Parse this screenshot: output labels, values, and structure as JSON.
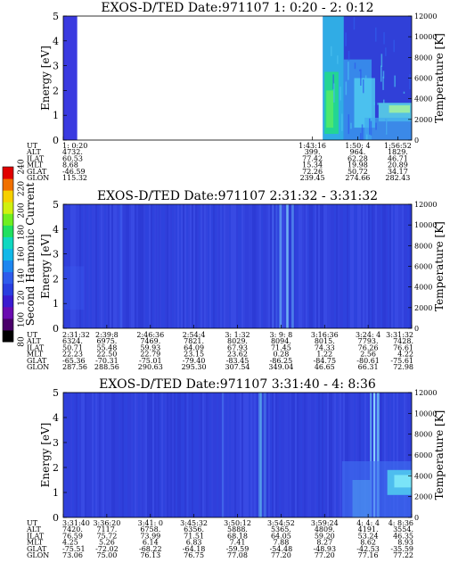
{
  "colorbar": {
    "label": "Second Harmonic Current",
    "ticks": [
      80,
      100,
      120,
      140,
      160,
      180,
      200,
      220,
      240
    ],
    "range": [
      80,
      240
    ],
    "colors": [
      "#000000",
      "#4a006a",
      "#6a0bb0",
      "#3a1bd0",
      "#2a3ee0",
      "#2f5bec",
      "#1d86f0",
      "#12b8e8",
      "#10d8c0",
      "#20e060",
      "#70ee20",
      "#d0f010",
      "#f5d000",
      "#f07000",
      "#e00000"
    ]
  },
  "chart_data": [
    {
      "type": "heatmap",
      "title": "EXOS-D/TED   Date:971107  1: 0:20 - 2: 0:12",
      "ylabel": "Energy [eV]",
      "ylabel_right": "Temperature [K]",
      "ylim": [
        0,
        5
      ],
      "yticks": [
        0,
        1,
        2,
        3,
        4,
        5
      ],
      "y2lim": [
        0,
        12000
      ],
      "y2ticks": [
        0,
        2000,
        4000,
        6000,
        8000,
        10000,
        12000
      ],
      "table_rows": [
        "UT",
        "ALT",
        "ILAT",
        "MLT",
        "GLAT",
        "GLON"
      ],
      "columns": [
        {
          "frac": 0.0,
          "values": [
            "1: 0:20",
            "4732.",
            "60.53",
            "8.68",
            "-46.59",
            "115.32"
          ]
        },
        {
          "frac": 0.715,
          "values": [
            "1:43:16",
            "399.",
            "77.42",
            "15.34",
            "72.26",
            "239.45"
          ]
        },
        {
          "frac": 0.845,
          "values": [
            "1:50: 4",
            "964.",
            "62.28",
            "19.98",
            "50.72",
            "274.66"
          ]
        },
        {
          "frac": 0.96,
          "values": [
            "1:56:52",
            "1829.",
            "46.71",
            "20.89",
            "34.17",
            "282.43"
          ]
        }
      ],
      "data_segments": [
        {
          "x_start": 0.0,
          "x_end": 0.04,
          "pattern": "uniform"
        },
        {
          "x_start": 0.745,
          "x_end": 1.0,
          "pattern": "active"
        }
      ]
    },
    {
      "type": "heatmap",
      "title": "EXOS-D/TED   Date:971107  2:31:32 - 3:31:32",
      "ylabel": "Energy [eV]",
      "ylabel_right": "Temperature [K]",
      "ylim": [
        0,
        5
      ],
      "yticks": [
        0,
        1,
        2,
        3,
        4,
        5
      ],
      "y2lim": [
        0,
        12000
      ],
      "y2ticks": [
        0,
        2000,
        4000,
        6000,
        8000,
        10000,
        12000
      ],
      "table_rows": [
        "UT",
        "ALT",
        "ILAT",
        "MLT",
        "GLAT",
        "GLON"
      ],
      "columns": [
        {
          "frac": 0.0,
          "values": [
            "2:31:32",
            "6324.",
            "50.71",
            "22.23",
            "-65.36",
            "287.56"
          ]
        },
        {
          "frac": 0.125,
          "values": [
            "2:39:8",
            "6975.",
            "55.48",
            "22.50",
            "-70.31",
            "288.56"
          ]
        },
        {
          "frac": 0.25,
          "values": [
            "2:46:36",
            "7469.",
            "59.93",
            "22.79",
            "-75.01",
            "290.63"
          ]
        },
        {
          "frac": 0.375,
          "values": [
            "2:54:4",
            "7821.",
            "64.09",
            "23.15",
            "-79.40",
            "295.30"
          ]
        },
        {
          "frac": 0.5,
          "values": [
            "3: 1:32",
            "8029.",
            "67.93",
            "23.62",
            "-83.45",
            "307.54"
          ]
        },
        {
          "frac": 0.625,
          "values": [
            "3: 9: 8",
            "8094.",
            "71.45",
            "0.28",
            "-86.25",
            "349.04"
          ]
        },
        {
          "frac": 0.75,
          "values": [
            "3:16:36",
            "8015.",
            "74.33",
            "1.22",
            "-84.75",
            "46.65"
          ]
        },
        {
          "frac": 0.875,
          "values": [
            "3:24: 4",
            "7793.",
            "76.26",
            "2.56",
            "-80.61",
            "66.31"
          ]
        },
        {
          "frac": 1.0,
          "values": [
            "3:31:32",
            "7428.",
            "76.61",
            "4.22",
            "-75.61",
            "72.98"
          ]
        }
      ],
      "data_segments": [
        {
          "x_start": 0.0,
          "x_end": 1.0,
          "pattern": "band"
        }
      ]
    },
    {
      "type": "heatmap",
      "title": "EXOS-D/TED   Date:971107  3:31:40 - 4: 8:36",
      "ylabel": "Energy [eV]",
      "ylabel_right": "Temperature [K]",
      "ylim": [
        0,
        5
      ],
      "yticks": [
        0,
        1,
        2,
        3,
        4,
        5
      ],
      "y2lim": [
        0,
        12000
      ],
      "y2ticks": [
        0,
        2000,
        4000,
        6000,
        8000,
        10000,
        12000
      ],
      "table_rows": [
        "UT",
        "ALT",
        "ILAT",
        "MLT",
        "GLAT",
        "GLON"
      ],
      "columns": [
        {
          "frac": 0.0,
          "values": [
            "3:31:40",
            "7420.",
            "76.59",
            "4.25",
            "-75.51",
            "73.06"
          ]
        },
        {
          "frac": 0.125,
          "values": [
            "3:36:20",
            "7117.",
            "75.72",
            "5.26",
            "-72.02",
            "75.00"
          ]
        },
        {
          "frac": 0.25,
          "values": [
            "3:41: 0",
            "6758.",
            "73.99",
            "6.14",
            "-68.22",
            "76.13"
          ]
        },
        {
          "frac": 0.375,
          "values": [
            "3:45:32",
            "6356.",
            "71.51",
            "6.83",
            "-64.18",
            "76.75"
          ]
        },
        {
          "frac": 0.5,
          "values": [
            "3:50:12",
            "5888.",
            "68.18",
            "7.41",
            "-59.59",
            "77.08"
          ]
        },
        {
          "frac": 0.625,
          "values": [
            "3:54:52",
            "5365.",
            "64.05",
            "7.88",
            "-54.48",
            "77.20"
          ]
        },
        {
          "frac": 0.75,
          "values": [
            "3:59:24",
            "4809.",
            "59.20",
            "8.27",
            "-48.93",
            "77.20"
          ]
        },
        {
          "frac": 0.875,
          "values": [
            "4: 4: 4",
            "4191.",
            "53.24",
            "8.62",
            "-42.53",
            "77.16"
          ]
        },
        {
          "frac": 1.0,
          "values": [
            "4: 8:36",
            "3554.",
            "46.35",
            "8.93",
            "-35.59",
            "77.22"
          ]
        }
      ],
      "data_segments": [
        {
          "x_start": 0.0,
          "x_end": 1.0,
          "pattern": "late"
        }
      ]
    }
  ]
}
